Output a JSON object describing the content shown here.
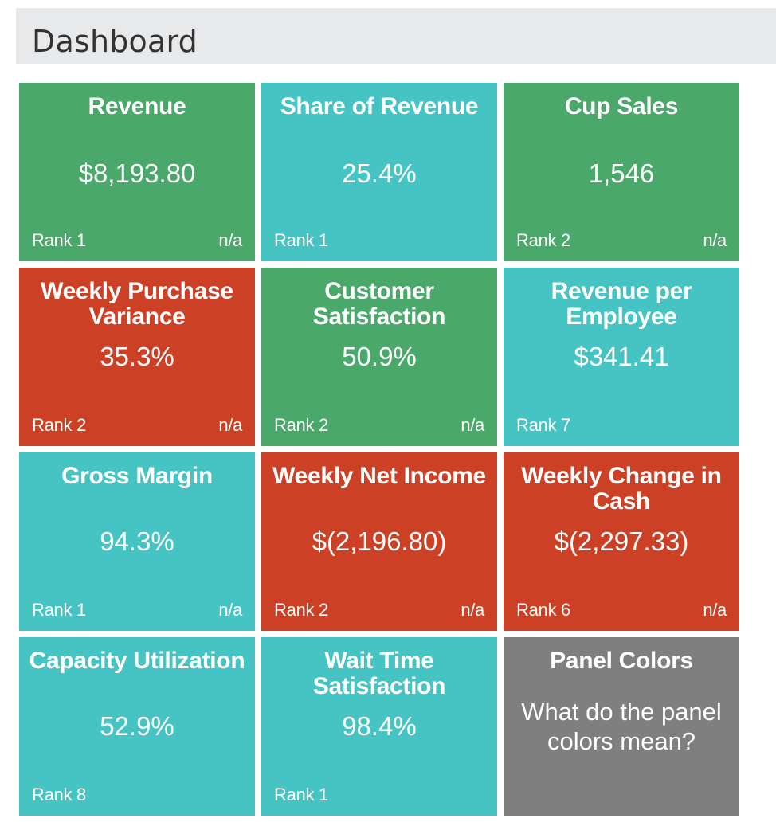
{
  "header": {
    "title": "Dashboard"
  },
  "colors": {
    "good": "#4aa86b",
    "neutral": "#46c4c3",
    "bad": "#cc4126",
    "info": "#7f7f7f",
    "header_bg": "#e8e9eb"
  },
  "tiles": [
    {
      "title": "Revenue",
      "value": "$8,193.80",
      "rank": "Rank 1",
      "trend": "n/a",
      "color": "green"
    },
    {
      "title": "Share of Revenue",
      "value": "25.4%",
      "rank": "Rank 1",
      "trend": "",
      "color": "teal"
    },
    {
      "title": "Cup Sales",
      "value": "1,546",
      "rank": "Rank 2",
      "trend": "n/a",
      "color": "green"
    },
    {
      "title": "Weekly Purchase Variance",
      "value": "35.3%",
      "rank": "Rank 2",
      "trend": "n/a",
      "color": "red"
    },
    {
      "title": "Customer Satisfaction",
      "value": "50.9%",
      "rank": "Rank 2",
      "trend": "n/a",
      "color": "green"
    },
    {
      "title": "Revenue per Employee",
      "value": "$341.41",
      "rank": "Rank 7",
      "trend": "",
      "color": "teal"
    },
    {
      "title": "Gross Margin",
      "value": "94.3%",
      "rank": "Rank 1",
      "trend": "n/a",
      "color": "teal"
    },
    {
      "title": "Weekly Net Income",
      "value": "$(2,196.80)",
      "rank": "Rank 2",
      "trend": "n/a",
      "color": "red"
    },
    {
      "title": "Weekly Change in Cash",
      "value": "$(2,297.33)",
      "rank": "Rank 6",
      "trend": "n/a",
      "color": "red"
    },
    {
      "title": "Capacity Utilization",
      "value": "52.9%",
      "rank": "Rank 8",
      "trend": "",
      "color": "teal"
    },
    {
      "title": "Wait Time Satisfaction",
      "value": "98.4%",
      "rank": "Rank 1",
      "trend": "",
      "color": "teal"
    }
  ],
  "info_panel": {
    "title": "Panel Colors",
    "link": "What do the panel colors mean?"
  }
}
